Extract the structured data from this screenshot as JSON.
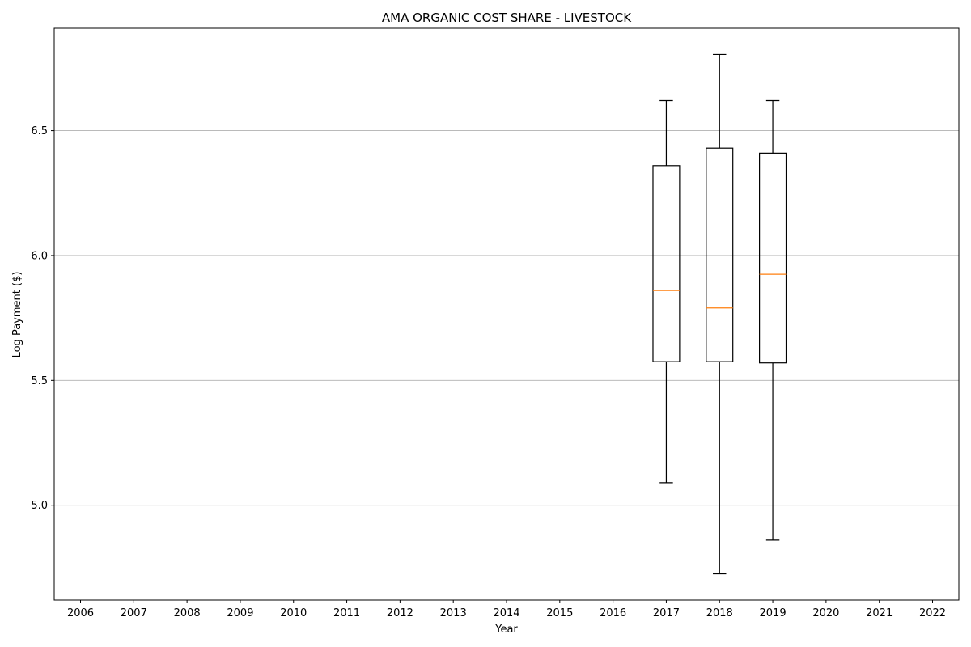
{
  "chart_data": {
    "type": "box",
    "title": "AMA ORGANIC COST SHARE - LIVESTOCK",
    "xlabel": "Year",
    "ylabel": "Log Payment ($)",
    "categories": [
      "2006",
      "2007",
      "2008",
      "2009",
      "2010",
      "2011",
      "2012",
      "2013",
      "2014",
      "2015",
      "2016",
      "2017",
      "2018",
      "2019",
      "2020",
      "2021",
      "2022"
    ],
    "ylim": [
      4.62,
      6.91
    ],
    "yticks": [
      5.0,
      5.5,
      6.0,
      6.5
    ],
    "ytick_labels": [
      "5.0",
      "5.5",
      "6.0",
      "6.5"
    ],
    "grid": "y",
    "boxes": [
      {
        "category": "2017",
        "whisker_low": 5.09,
        "q1": 5.575,
        "median": 5.86,
        "q3": 6.36,
        "whisker_high": 6.62
      },
      {
        "category": "2018",
        "whisker_low": 4.725,
        "q1": 5.575,
        "median": 5.79,
        "q3": 6.43,
        "whisker_high": 6.805
      },
      {
        "category": "2019",
        "whisker_low": 4.86,
        "q1": 5.57,
        "median": 5.925,
        "q3": 6.41,
        "whisker_high": 6.62
      }
    ],
    "colors": {
      "box": "#000000",
      "median": "#ff7f0e",
      "grid": "#b0b0b0"
    }
  }
}
